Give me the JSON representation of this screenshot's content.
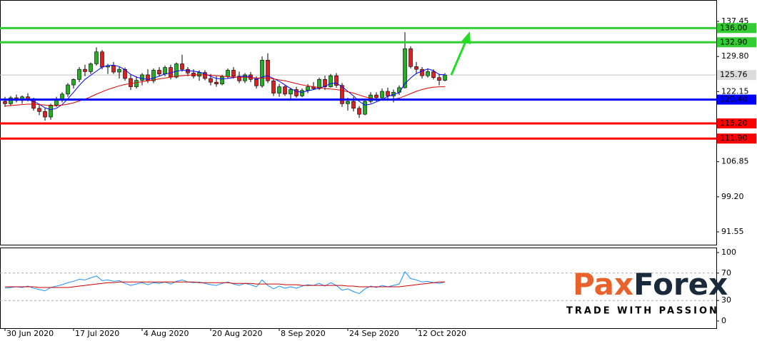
{
  "chart_data": [
    {
      "type": "candlestick",
      "categories": [
        "30 Jun 2020",
        null,
        null,
        null,
        null,
        null,
        null,
        null,
        null,
        null,
        null,
        null,
        "17 Jul 2020",
        null,
        null,
        null,
        null,
        null,
        null,
        null,
        null,
        null,
        null,
        null,
        "4 Aug 2020",
        null,
        null,
        null,
        null,
        null,
        null,
        null,
        null,
        null,
        null,
        null,
        "20 Aug 2020",
        null,
        null,
        null,
        null,
        null,
        null,
        null,
        null,
        null,
        null,
        null,
        "8 Sep 2020",
        null,
        null,
        null,
        null,
        null,
        null,
        null,
        null,
        null,
        null,
        null,
        "24 Sep 2020",
        null,
        null,
        null,
        null,
        null,
        null,
        null,
        null,
        null,
        null,
        null,
        "12 Oct 2020",
        null,
        null,
        null,
        null,
        null
      ],
      "open": [
        120.0,
        119.5,
        120.8,
        120.2,
        121.0,
        120.3,
        118.5,
        117.8,
        116.6,
        119.2,
        120.5,
        121.6,
        123.6,
        124.8,
        127.0,
        126.5,
        128.2,
        130.8,
        127.5,
        127.8,
        126.4,
        127.0,
        125.0,
        123.2,
        124.6,
        125.8,
        124.5,
        126.8,
        126.0,
        127.4,
        125.3,
        128.2,
        127.0,
        126.2,
        125.5,
        126.3,
        125.0,
        124.2,
        123.8,
        125.4,
        126.8,
        125.5,
        124.5,
        125.8,
        124.8,
        123.4,
        129.0,
        124.5,
        121.8,
        123.2,
        121.6,
        122.6,
        121.2,
        122.4,
        123.2,
        122.8,
        124.8,
        123.2,
        125.6,
        123.5,
        119.5,
        120.0,
        118.5,
        117.2,
        120.0,
        121.4,
        120.8,
        122.2,
        121.2,
        122.0,
        123.0,
        131.5,
        127.6,
        127.0,
        125.6,
        126.5,
        125.2,
        124.6
      ],
      "high": [
        121.0,
        121.2,
        121.5,
        121.3,
        121.8,
        120.8,
        119.2,
        118.5,
        119.5,
        121.0,
        122.0,
        124.0,
        125.0,
        127.5,
        128.0,
        128.5,
        131.8,
        131.2,
        128.2,
        128.6,
        127.5,
        127.4,
        125.8,
        125.5,
        126.2,
        127.0,
        127.2,
        127.5,
        127.8,
        128.0,
        128.5,
        130.2,
        127.5,
        127.0,
        126.8,
        126.8,
        126.0,
        125.5,
        125.8,
        127.2,
        127.5,
        126.5,
        126.2,
        126.4,
        125.5,
        129.8,
        130.5,
        125.0,
        123.8,
        123.6,
        123.0,
        123.2,
        122.8,
        123.8,
        124.2,
        125.2,
        125.6,
        126.0,
        126.2,
        124.0,
        120.8,
        121.0,
        119.0,
        120.5,
        122.0,
        122.0,
        122.8,
        123.0,
        122.6,
        123.5,
        135.1,
        132.0,
        128.6,
        127.5,
        127.2,
        127.0,
        126.0,
        126.2
      ],
      "low": [
        118.8,
        119.0,
        119.8,
        119.5,
        120.0,
        118.0,
        117.0,
        115.8,
        116.0,
        118.8,
        119.8,
        121.0,
        122.8,
        124.2,
        125.5,
        126.0,
        127.8,
        127.0,
        126.0,
        126.0,
        125.0,
        124.5,
        122.5,
        122.8,
        123.5,
        124.0,
        124.0,
        125.5,
        125.5,
        124.8,
        125.0,
        126.5,
        125.5,
        125.0,
        124.5,
        124.6,
        123.5,
        123.2,
        123.5,
        125.0,
        125.0,
        124.0,
        124.0,
        124.2,
        122.8,
        123.0,
        124.0,
        121.2,
        121.0,
        121.2,
        120.6,
        120.8,
        120.9,
        121.8,
        122.5,
        122.5,
        122.5,
        123.0,
        123.0,
        118.8,
        118.0,
        117.8,
        116.4,
        117.0,
        119.6,
        120.0,
        120.2,
        120.5,
        119.8,
        121.4,
        122.8,
        127.2,
        126.0,
        125.0,
        125.2,
        124.8,
        123.5,
        124.4
      ],
      "close": [
        119.5,
        120.8,
        120.2,
        121.0,
        120.3,
        118.5,
        117.8,
        116.6,
        119.2,
        120.5,
        121.6,
        123.6,
        124.8,
        127.0,
        126.5,
        128.2,
        130.8,
        127.5,
        127.8,
        126.4,
        127.0,
        125.0,
        123.2,
        124.6,
        125.8,
        124.5,
        126.8,
        126.0,
        127.4,
        125.3,
        128.2,
        127.0,
        126.2,
        125.5,
        126.3,
        125.0,
        124.2,
        123.8,
        125.4,
        126.8,
        125.5,
        124.5,
        125.8,
        124.8,
        123.4,
        129.0,
        124.5,
        121.8,
        123.2,
        121.6,
        122.6,
        121.2,
        122.4,
        123.2,
        122.8,
        124.8,
        123.2,
        125.6,
        123.5,
        119.5,
        120.0,
        118.5,
        117.2,
        120.0,
        121.4,
        120.8,
        122.2,
        121.2,
        122.0,
        123.0,
        131.5,
        127.6,
        127.0,
        125.6,
        126.5,
        125.2,
        124.6,
        125.76
      ],
      "up_color": "#22b022",
      "down_color": "#e02020",
      "lines": [
        {
          "color": "#0000ff",
          "values": [
            120.2,
            120.3,
            120.4,
            120.3,
            120.4,
            120.0,
            119.4,
            118.6,
            118.2,
            118.5,
            119.3,
            120.6,
            122.0,
            123.5,
            124.8,
            125.7,
            126.6,
            127.5,
            127.8,
            127.9,
            127.6,
            126.9,
            125.9,
            125.3,
            125.0,
            124.8,
            125.1,
            125.5,
            126.0,
            126.2,
            126.6,
            126.8,
            126.7,
            126.6,
            126.4,
            126.0,
            125.5,
            125.0,
            124.9,
            125.0,
            125.2,
            125.4,
            125.5,
            125.4,
            124.8,
            125.3,
            125.6,
            125.0,
            124.4,
            123.6,
            122.8,
            122.2,
            122.0,
            122.3,
            122.6,
            122.9,
            123.3,
            123.9,
            124.0,
            123.2,
            122.2,
            121.2,
            120.0,
            119.2,
            119.4,
            119.9,
            120.4,
            121.1,
            121.5,
            121.9,
            123.9,
            125.1,
            126.1,
            126.6,
            127.1,
            126.7,
            125.9,
            125.8
          ]
        },
        {
          "color": "#e00000",
          "values": [
            119.0,
            119.1,
            119.2,
            119.3,
            119.4,
            119.4,
            119.3,
            119.2,
            119.1,
            119.1,
            119.2,
            119.4,
            119.7,
            120.1,
            120.5,
            121.0,
            121.6,
            122.1,
            122.6,
            123.0,
            123.4,
            123.7,
            123.9,
            124.1,
            124.3,
            124.5,
            124.7,
            124.9,
            125.1,
            125.3,
            125.5,
            125.6,
            125.7,
            125.8,
            125.8,
            125.8,
            125.7,
            125.6,
            125.5,
            125.4,
            125.3,
            125.3,
            125.3,
            125.2,
            125.1,
            125.1,
            125.1,
            124.9,
            124.7,
            124.5,
            124.2,
            123.9,
            123.6,
            123.4,
            123.2,
            123.0,
            122.8,
            122.7,
            122.6,
            122.4,
            122.1,
            121.8,
            121.4,
            121.0,
            120.7,
            120.5,
            120.4,
            120.4,
            120.5,
            120.7,
            121.2,
            121.7,
            122.2,
            122.6,
            122.9,
            123.1,
            123.2,
            123.2
          ]
        }
      ],
      "ylim": [
        88.75,
        142.12
      ],
      "yticks": [
        137.45,
        {
          "value": 129.8,
          "label": "129.80"
        },
        122.15,
        106.85,
        {
          "value": 99.2,
          "label": "99.20"
        },
        91.55
      ],
      "levels": [
        {
          "value": 136,
          "label": "136.00",
          "color": "#33cc33"
        },
        {
          "value": 132.9,
          "label": "132.90",
          "color": "#33cc33"
        },
        {
          "value": 120.4,
          "label": "120.40",
          "color": "#0000ff"
        },
        {
          "value": 115.2,
          "label": "115.20",
          "color": "#ff0000"
        },
        {
          "value": 111.9,
          "label": "111.90",
          "color": "#ff0000"
        }
      ],
      "current": 125.76
    },
    {
      "type": "line",
      "series": [
        {
          "color": "#1e90ff",
          "values": [
            48,
            49,
            50,
            49,
            51,
            48,
            46,
            44,
            49,
            51,
            53,
            56,
            58,
            61,
            60,
            63,
            66,
            59,
            60,
            58,
            59,
            55,
            52,
            54,
            56,
            53,
            56,
            55,
            57,
            54,
            58,
            60,
            57,
            56,
            57,
            55,
            53,
            52,
            55,
            57,
            54,
            52,
            55,
            53,
            50,
            60,
            52,
            47,
            51,
            48,
            50,
            48,
            51,
            53,
            52,
            55,
            51,
            56,
            52,
            45,
            47,
            43,
            40,
            47,
            51,
            49,
            52,
            50,
            52,
            54,
            72,
            62,
            60,
            57,
            58,
            56,
            55,
            57
          ]
        },
        {
          "color": "#cc0000",
          "values": [
            50,
            50,
            50,
            50,
            50,
            50,
            49,
            49,
            49,
            49,
            49,
            49,
            50,
            51,
            52,
            53,
            54,
            55,
            56,
            56,
            57,
            57,
            57,
            57,
            57,
            57,
            57,
            57,
            57,
            57,
            57,
            57,
            57,
            57,
            56,
            56,
            56,
            56,
            56,
            56,
            55,
            55,
            55,
            55,
            54,
            54,
            54,
            54,
            54,
            53,
            53,
            53,
            52,
            52,
            52,
            52,
            52,
            52,
            52,
            52,
            51,
            51,
            50,
            50,
            50,
            50,
            50,
            50,
            50,
            50,
            51,
            52,
            53,
            54,
            55,
            56,
            57,
            57
          ]
        }
      ],
      "ylim": [
        -10.4,
        107.3
      ],
      "yticks": [
        100,
        70,
        30,
        0
      ],
      "dashed_levels": [
        70,
        30
      ]
    }
  ],
  "logo": {
    "brand": [
      "Pax",
      "Forex"
    ],
    "tagline": "TRADE WITH PASSION"
  }
}
